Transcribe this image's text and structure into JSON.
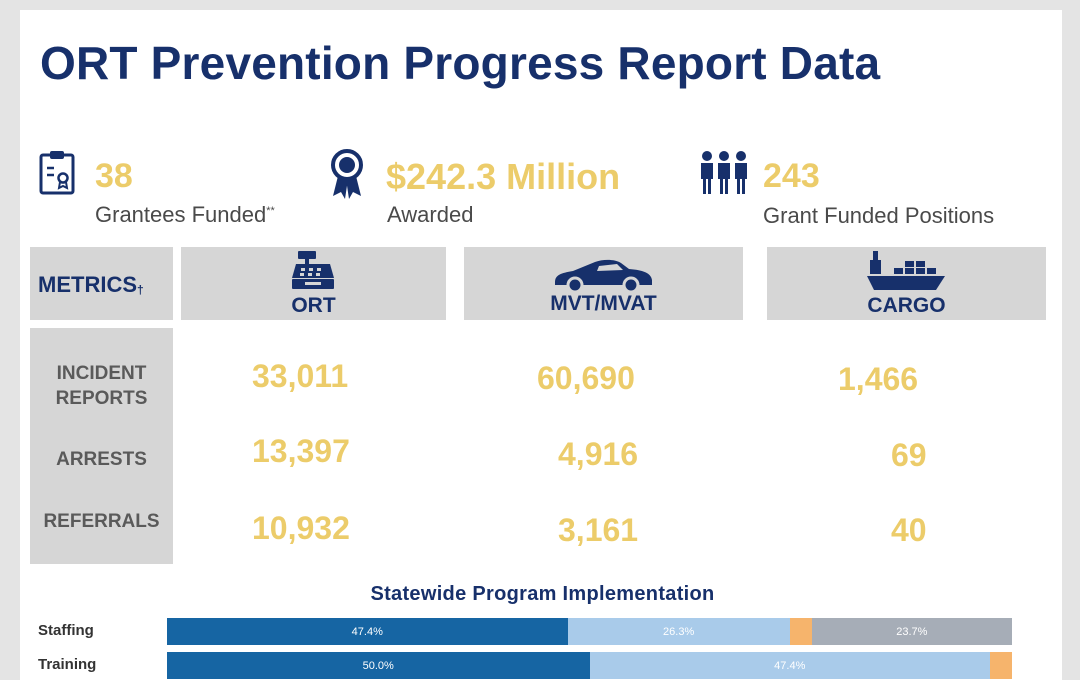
{
  "title": "ORT Prevention Progress Report Data",
  "colors": {
    "navy": "#17306b",
    "gold": "#eccc6a",
    "gray_box": "#d6d6d6"
  },
  "kpis": [
    {
      "icon": "clipboard-icon",
      "value": "38",
      "label": "Grantees Funded",
      "label_mark": "**"
    },
    {
      "icon": "award-ribbon-icon",
      "value": "$242.3 Million",
      "label": "Awarded"
    },
    {
      "icon": "people-group-icon",
      "value": "243",
      "label": "Grant Funded Positions"
    }
  ],
  "metrics": {
    "header": "METRICS",
    "header_mark": "†",
    "columns": [
      {
        "label": "ORT",
        "icon": "cash-register-icon"
      },
      {
        "label": "MVT/MVAT",
        "icon": "car-icon"
      },
      {
        "label": "CARGO",
        "icon": "cargo-ship-icon"
      }
    ],
    "rows": [
      {
        "label": "INCIDENT\nREPORTS",
        "values": [
          "33,011",
          "60,690",
          "1,466"
        ]
      },
      {
        "label": "ARRESTS",
        "values": [
          "13,397",
          "4,916",
          "69"
        ]
      },
      {
        "label": "REFERRALS",
        "values": [
          "10,932",
          "3,161",
          "40"
        ]
      }
    ]
  },
  "implementation": {
    "title": "Statewide Program Implementation",
    "bars": [
      {
        "label": "Staffing",
        "segments": [
          {
            "value": 47.4,
            "text": "47.4%",
            "color": "#1665a3"
          },
          {
            "value": 26.3,
            "text": "26.3%",
            "color": "#a9cbea"
          },
          {
            "value": 2.6,
            "text": "",
            "color": "#f6b46c"
          },
          {
            "value": 23.7,
            "text": "23.7%",
            "color": "#a6adb7"
          }
        ]
      },
      {
        "label": "Training",
        "segments": [
          {
            "value": 50.0,
            "text": "50.0%",
            "color": "#1665a3"
          },
          {
            "value": 47.4,
            "text": "47.4%",
            "color": "#a9cbea"
          },
          {
            "value": 2.6,
            "text": "",
            "color": "#f6b46c"
          }
        ]
      }
    ]
  }
}
